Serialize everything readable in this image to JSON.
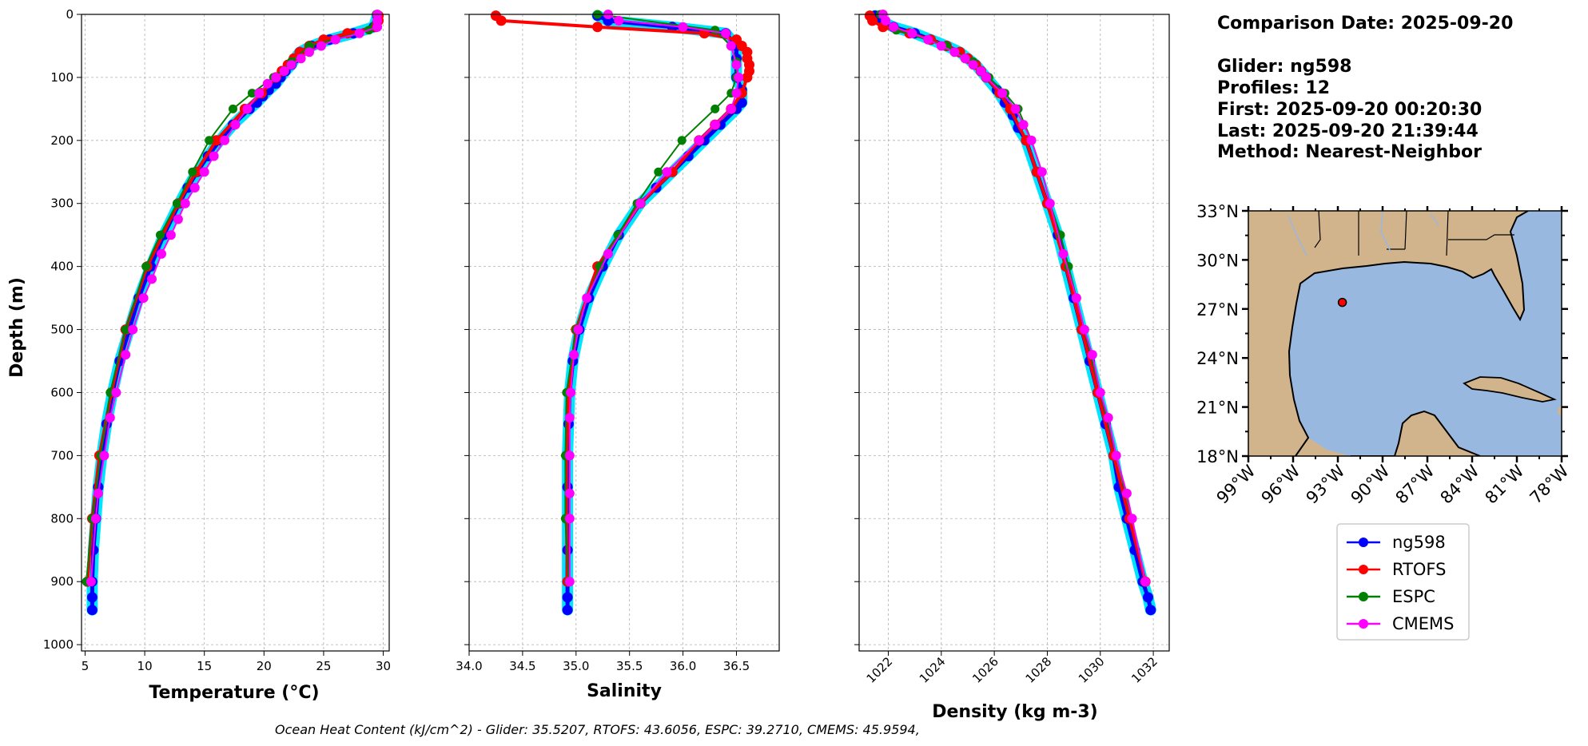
{
  "info": {
    "comparison_date": "Comparison Date: 2025-09-20",
    "glider": "Glider: ng598",
    "profiles": "Profiles: 12",
    "first": "First: 2025-09-20 00:20:30",
    "last": "Last: 2025-09-20 21:39:44",
    "method": "Method: Nearest-Neighbor"
  },
  "footer": "Ocean Heat Content (kJ/cm^2) - Glider: 35.5207,  RTOFS: 43.6056,  ESPC: 39.2710,  CMEMS: 45.9594,",
  "colors": {
    "ng598": "#0000ff",
    "ng598_halo": "#00e5ff",
    "RTOFS": "#ff0000",
    "ESPC": "#008000",
    "CMEMS": "#ff00ff",
    "land": "#d2b48c",
    "ocean": "#99b8e0",
    "grid": "#b0b0b0"
  },
  "chart_data": [
    {
      "type": "line",
      "id": "temperature",
      "xlabel": "Temperature (°C)",
      "ylabel": "Depth (m)",
      "xlim": [
        4.7,
        30.5
      ],
      "ylim": [
        1010,
        0
      ],
      "xticks": [
        5,
        10,
        15,
        20,
        25,
        30
      ],
      "yticks": [
        0,
        100,
        200,
        300,
        400,
        500,
        600,
        700,
        800,
        900,
        1000
      ],
      "grid": true,
      "series": [
        {
          "name": "ng598",
          "depth": [
            2,
            20,
            30,
            40,
            50,
            60,
            70,
            80,
            90,
            100,
            110,
            120,
            130,
            140,
            150,
            175,
            200,
            225,
            250,
            275,
            300,
            350,
            400,
            450,
            500,
            550,
            600,
            650,
            700,
            750,
            800,
            850,
            900,
            925,
            945
          ],
          "values": [
            29.5,
            29.2,
            27.5,
            25.5,
            24.0,
            23.0,
            22.6,
            22.3,
            21.8,
            21.4,
            21.0,
            20.4,
            19.9,
            19.4,
            18.8,
            17.4,
            16.3,
            15.3,
            14.4,
            13.6,
            12.9,
            11.6,
            10.5,
            9.5,
            8.7,
            7.9,
            7.3,
            6.8,
            6.4,
            6.1,
            5.9,
            5.7,
            5.6,
            5.6,
            5.6
          ]
        },
        {
          "name": "RTOFS",
          "depth": [
            2,
            10,
            20,
            30,
            40,
            50,
            60,
            70,
            80,
            90,
            100,
            125,
            150,
            200,
            250,
            300,
            400,
            500,
            600,
            700,
            800,
            900
          ],
          "values": [
            29.6,
            29.6,
            29.4,
            27.0,
            25.0,
            23.8,
            23.0,
            22.5,
            22.0,
            21.5,
            21.0,
            19.8,
            18.4,
            16.0,
            14.3,
            12.8,
            10.2,
            8.4,
            7.2,
            6.2,
            5.6,
            5.2
          ]
        },
        {
          "name": "ESPC",
          "depth": [
            0,
            25,
            50,
            75,
            100,
            125,
            150,
            200,
            250,
            300,
            350,
            400,
            500,
            600,
            700,
            800,
            900
          ],
          "values": [
            29.4,
            28.8,
            23.8,
            22.3,
            20.8,
            19.0,
            17.4,
            15.4,
            14.0,
            12.7,
            11.3,
            10.1,
            8.4,
            7.1,
            6.3,
            5.6,
            5.1
          ]
        },
        {
          "name": "CMEMS",
          "depth": [
            0,
            10,
            20,
            30,
            40,
            50,
            60,
            70,
            80,
            90,
            100,
            110,
            125,
            150,
            175,
            200,
            225,
            250,
            275,
            300,
            325,
            350,
            380,
            420,
            450,
            500,
            540,
            600,
            640,
            700,
            760,
            800,
            900
          ],
          "values": [
            29.5,
            29.5,
            29.5,
            28.0,
            26.0,
            24.8,
            23.8,
            23.1,
            22.3,
            21.7,
            21.0,
            20.3,
            19.6,
            18.6,
            17.6,
            16.7,
            15.8,
            15.0,
            14.2,
            13.4,
            12.8,
            12.2,
            11.4,
            10.6,
            9.9,
            9.0,
            8.4,
            7.6,
            7.1,
            6.6,
            6.1,
            5.9,
            5.5
          ]
        }
      ]
    },
    {
      "type": "line",
      "id": "salinity",
      "xlabel": "Salinity",
      "xlim": [
        34.0,
        36.9
      ],
      "ylim": [
        1010,
        0
      ],
      "xticks": [
        "34.0",
        "34.5",
        "35.0",
        "35.5",
        "36.0",
        "36.5"
      ],
      "grid": true,
      "series": [
        {
          "name": "ng598",
          "depth": [
            2,
            10,
            20,
            30,
            50,
            70,
            100,
            120,
            140,
            150,
            175,
            200,
            225,
            250,
            275,
            300,
            350,
            400,
            450,
            500,
            550,
            600,
            650,
            700,
            750,
            800,
            850,
            900,
            925,
            945
          ],
          "values": [
            35.2,
            35.3,
            35.9,
            36.4,
            36.5,
            36.5,
            36.5,
            36.55,
            36.55,
            36.5,
            36.35,
            36.2,
            36.05,
            35.9,
            35.75,
            35.6,
            35.4,
            35.25,
            35.12,
            35.03,
            34.97,
            34.94,
            34.93,
            34.92,
            34.92,
            34.92,
            34.92,
            34.92,
            34.92,
            34.92
          ]
        },
        {
          "name": "RTOFS",
          "depth": [
            2,
            10,
            20,
            30,
            40,
            50,
            60,
            70,
            80,
            90,
            100,
            125,
            150,
            175,
            200,
            250,
            300,
            400,
            500,
            600,
            700,
            800,
            900
          ],
          "values": [
            34.25,
            34.3,
            35.2,
            36.2,
            36.5,
            36.55,
            36.6,
            36.6,
            36.62,
            36.62,
            36.6,
            36.55,
            36.45,
            36.3,
            36.15,
            35.9,
            35.6,
            35.2,
            35.0,
            34.93,
            34.91,
            34.91,
            34.92
          ]
        },
        {
          "name": "ESPC",
          "depth": [
            0,
            25,
            50,
            75,
            100,
            125,
            150,
            200,
            250,
            300,
            350,
            400,
            500,
            600,
            700,
            800,
            900
          ],
          "values": [
            35.2,
            36.3,
            36.45,
            36.5,
            36.5,
            36.45,
            36.3,
            35.99,
            35.77,
            35.57,
            35.39,
            35.22,
            35.0,
            34.91,
            34.9,
            34.9,
            34.93
          ]
        },
        {
          "name": "CMEMS",
          "depth": [
            0,
            10,
            20,
            30,
            50,
            80,
            100,
            125,
            150,
            175,
            200,
            250,
            300,
            380,
            450,
            500,
            540,
            600,
            640,
            700,
            760,
            800,
            900
          ],
          "values": [
            35.3,
            35.4,
            36.0,
            36.4,
            36.45,
            36.5,
            36.52,
            36.5,
            36.45,
            36.3,
            36.15,
            35.85,
            35.6,
            35.3,
            35.1,
            35.02,
            34.98,
            34.95,
            34.94,
            34.94,
            34.94,
            34.94,
            34.94
          ]
        }
      ]
    },
    {
      "type": "line",
      "id": "density",
      "xlabel": "Density (kg m-3)",
      "xlim": [
        1020.9,
        1032.6
      ],
      "ylim": [
        1010,
        0
      ],
      "xticks": [
        1022,
        1024,
        1026,
        1028,
        1030,
        1032
      ],
      "grid": true,
      "series": [
        {
          "name": "ng598",
          "depth": [
            2,
            10,
            20,
            30,
            40,
            50,
            60,
            70,
            80,
            90,
            100,
            120,
            140,
            160,
            180,
            200,
            250,
            300,
            350,
            400,
            450,
            500,
            550,
            600,
            650,
            700,
            750,
            800,
            850,
            900,
            925,
            945
          ],
          "values": [
            1021.5,
            1021.7,
            1022.2,
            1023.0,
            1023.6,
            1024.2,
            1024.7,
            1025.0,
            1025.3,
            1025.5,
            1025.7,
            1026.1,
            1026.4,
            1026.7,
            1026.9,
            1027.2,
            1027.6,
            1028.0,
            1028.4,
            1028.7,
            1029.0,
            1029.3,
            1029.6,
            1029.9,
            1030.2,
            1030.5,
            1030.7,
            1031.0,
            1031.3,
            1031.6,
            1031.8,
            1031.9
          ]
        },
        {
          "name": "RTOFS",
          "depth": [
            2,
            10,
            20,
            30,
            40,
            50,
            60,
            70,
            80,
            90,
            100,
            125,
            150,
            200,
            250,
            300,
            400,
            500,
            600,
            700,
            800,
            900
          ],
          "values": [
            1021.3,
            1021.4,
            1021.8,
            1022.8,
            1023.6,
            1024.2,
            1024.7,
            1025.0,
            1025.3,
            1025.5,
            1025.7,
            1026.2,
            1026.6,
            1027.2,
            1027.6,
            1028.0,
            1028.7,
            1029.3,
            1029.9,
            1030.5,
            1031.1,
            1031.7
          ]
        },
        {
          "name": "ESPC",
          "depth": [
            0,
            25,
            50,
            75,
            100,
            125,
            150,
            200,
            250,
            300,
            350,
            400,
            500,
            600,
            700,
            800,
            900
          ],
          "values": [
            1021.7,
            1022.3,
            1024.2,
            1025.2,
            1025.8,
            1026.4,
            1026.9,
            1027.4,
            1027.8,
            1028.1,
            1028.5,
            1028.8,
            1029.4,
            1030.0,
            1030.6,
            1031.2,
            1031.7
          ]
        },
        {
          "name": "CMEMS",
          "depth": [
            0,
            10,
            20,
            30,
            40,
            50,
            60,
            70,
            80,
            90,
            100,
            125,
            150,
            175,
            200,
            250,
            300,
            380,
            450,
            500,
            540,
            600,
            640,
            700,
            760,
            800,
            900
          ],
          "values": [
            1021.8,
            1021.9,
            1022.2,
            1022.9,
            1023.5,
            1024.0,
            1024.5,
            1024.9,
            1025.2,
            1025.5,
            1025.7,
            1026.3,
            1026.8,
            1027.1,
            1027.4,
            1027.8,
            1028.1,
            1028.6,
            1029.1,
            1029.4,
            1029.7,
            1030.0,
            1030.3,
            1030.6,
            1031.0,
            1031.2,
            1031.7
          ]
        }
      ]
    }
  ],
  "map": {
    "lon_range": [
      -99,
      -78
    ],
    "lat_range": [
      18,
      33
    ],
    "lon_ticks": [
      "99°W",
      "96°W",
      "93°W",
      "90°W",
      "87°W",
      "84°W",
      "81°W",
      "78°W"
    ],
    "lat_ticks": [
      "33°N",
      "30°N",
      "27°N",
      "24°N",
      "21°N",
      "18°N"
    ],
    "glider_position": {
      "lon": -92.7,
      "lat": 27.4
    }
  },
  "legend": [
    {
      "key": "ng598",
      "label": "ng598"
    },
    {
      "key": "RTOFS",
      "label": "RTOFS"
    },
    {
      "key": "ESPC",
      "label": "ESPC"
    },
    {
      "key": "CMEMS",
      "label": "CMEMS"
    }
  ]
}
